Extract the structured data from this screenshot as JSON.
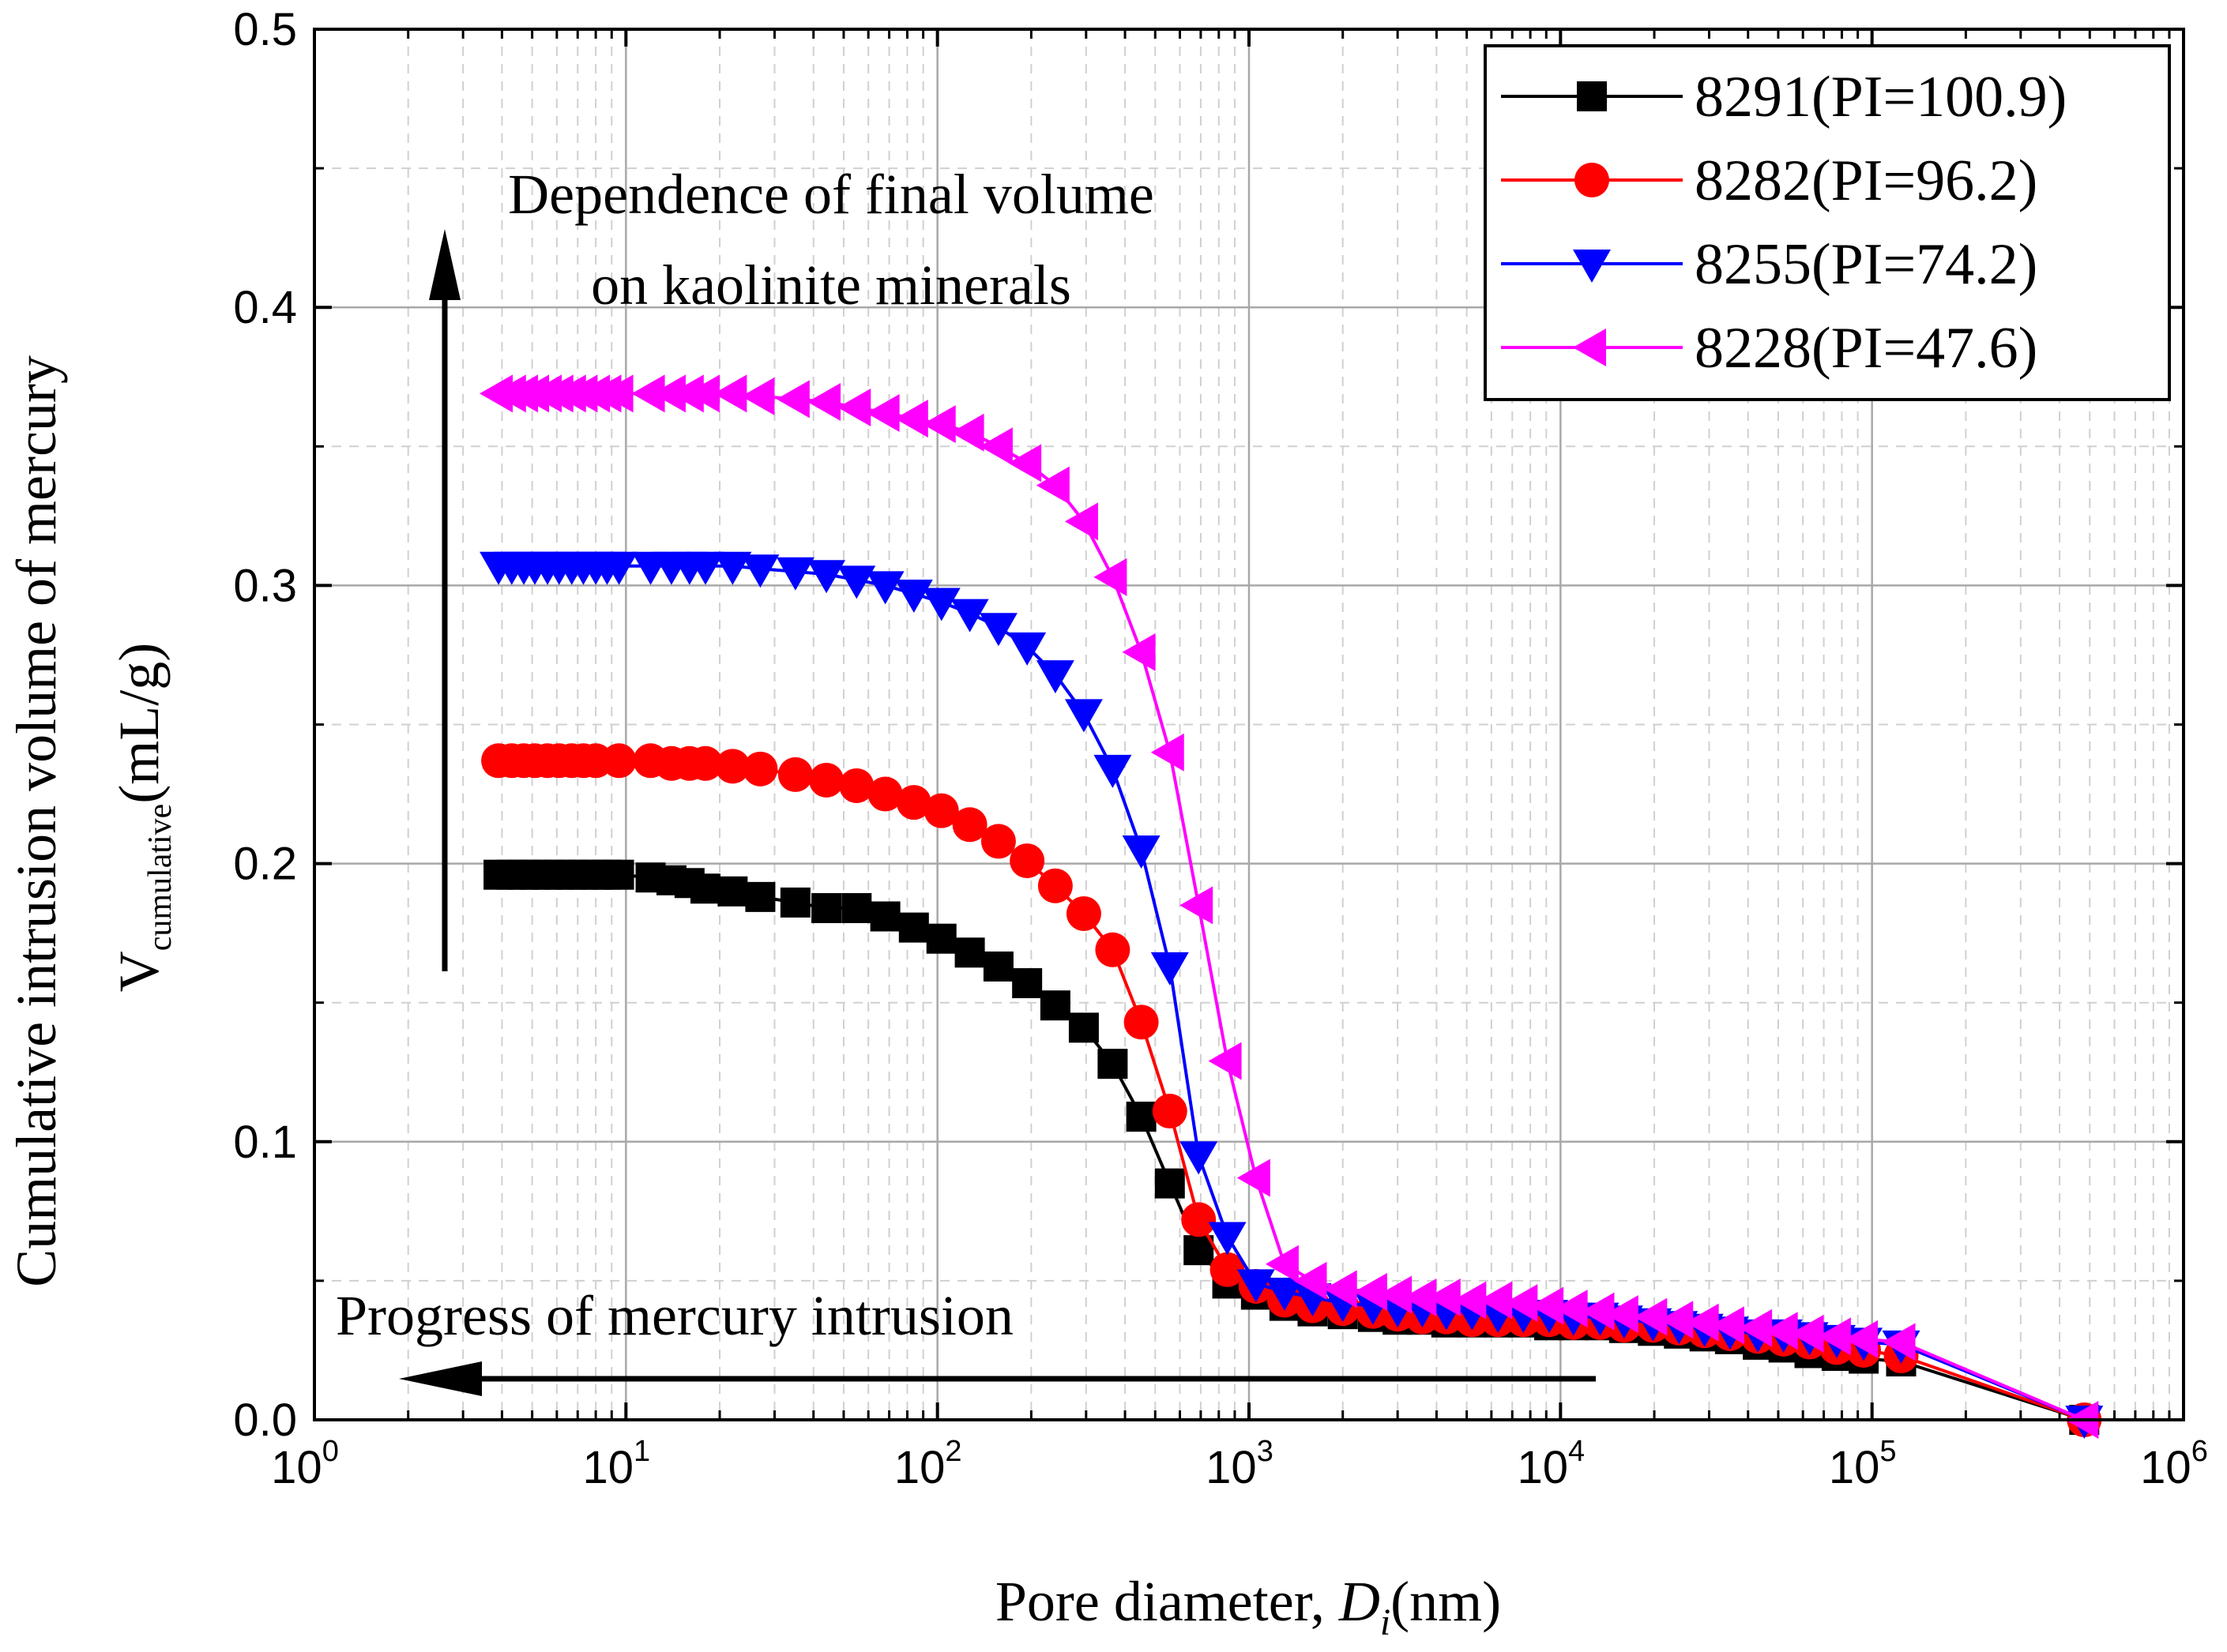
{
  "chart_data": {
    "type": "line",
    "x_scale": "log",
    "xlim": [
      1,
      1000000
    ],
    "ylim": [
      0.0,
      0.5
    ],
    "grid": true,
    "legend_position": "top-right",
    "xlabel": "Pore diameter, ",
    "xlabel_italic": "D",
    "xlabel_subscript": "i",
    "xlabel_unit": "(nm)",
    "ylabel_line1": "Cumulative intrusion volume of mercury",
    "ylabel_line2_main": "V",
    "ylabel_line2_sub": "cumulative",
    "ylabel_line2_unit": "(mL/g)",
    "x_ticks": [
      {
        "base": "10",
        "exp": "0"
      },
      {
        "base": "10",
        "exp": "1"
      },
      {
        "base": "10",
        "exp": "2"
      },
      {
        "base": "10",
        "exp": "3"
      },
      {
        "base": "10",
        "exp": "4"
      },
      {
        "base": "10",
        "exp": "5"
      },
      {
        "base": "10",
        "exp": "6"
      }
    ],
    "y_ticks": [
      "0.0",
      "0.1",
      "0.2",
      "0.3",
      "0.4",
      "0.5"
    ],
    "annotations": {
      "vertical_arrow_line1": "Dependence of  final volume",
      "vertical_arrow_line2": "on kaolinite minerals",
      "horizontal_arrow": "Progress of mercury intrusion"
    },
    "series": [
      {
        "name": "8291(PI=100.9)",
        "color": "#000000",
        "marker": "square",
        "x": [
          3.9,
          4.3,
          4.7,
          5.1,
          5.6,
          6.1,
          6.7,
          7.3,
          8.0,
          8.7,
          9.5,
          12,
          14,
          16,
          18,
          22,
          27,
          35,
          44,
          55,
          68,
          84,
          103,
          127,
          157,
          194,
          239,
          295,
          365,
          451,
          557,
          689,
          852,
          1053,
          1300,
          1600,
          2000,
          2500,
          3000,
          3600,
          4300,
          5200,
          6300,
          7600,
          9200,
          11000,
          13400,
          16000,
          19800,
          24000,
          29000,
          35000,
          43000,
          52000,
          63000,
          77000,
          94000,
          124000,
          480000
        ],
        "y": [
          0.196,
          0.196,
          0.196,
          0.196,
          0.196,
          0.196,
          0.196,
          0.196,
          0.196,
          0.196,
          0.196,
          0.195,
          0.194,
          0.193,
          0.191,
          0.19,
          0.188,
          0.186,
          0.184,
          0.184,
          0.181,
          0.177,
          0.173,
          0.168,
          0.163,
          0.157,
          0.149,
          0.141,
          0.128,
          0.109,
          0.085,
          0.061,
          0.049,
          0.045,
          0.041,
          0.039,
          0.038,
          0.037,
          0.036,
          0.036,
          0.035,
          0.035,
          0.035,
          0.035,
          0.034,
          0.034,
          0.034,
          0.033,
          0.032,
          0.031,
          0.03,
          0.029,
          0.027,
          0.026,
          0.024,
          0.023,
          0.022,
          0.021,
          0.0
        ]
      },
      {
        "name": "8282(PI=96.2)",
        "color": "#ff0000",
        "marker": "circle",
        "x": [
          3.9,
          4.3,
          4.7,
          5.1,
          5.6,
          6.1,
          6.7,
          7.3,
          8.0,
          9.5,
          12,
          14,
          16,
          18,
          22,
          27,
          35,
          44,
          55,
          68,
          84,
          103,
          127,
          157,
          194,
          239,
          295,
          365,
          451,
          557,
          689,
          852,
          1053,
          1300,
          1600,
          2000,
          2500,
          3000,
          3600,
          4300,
          5200,
          6300,
          7600,
          9200,
          11000,
          13400,
          16000,
          19800,
          24000,
          29000,
          35000,
          43000,
          52000,
          63000,
          77000,
          94000,
          124000,
          480000
        ],
        "y": [
          0.237,
          0.237,
          0.237,
          0.237,
          0.237,
          0.237,
          0.237,
          0.237,
          0.237,
          0.237,
          0.237,
          0.236,
          0.236,
          0.236,
          0.235,
          0.234,
          0.232,
          0.23,
          0.228,
          0.225,
          0.222,
          0.219,
          0.214,
          0.208,
          0.201,
          0.192,
          0.182,
          0.169,
          0.143,
          0.111,
          0.072,
          0.054,
          0.048,
          0.043,
          0.041,
          0.04,
          0.039,
          0.038,
          0.037,
          0.037,
          0.036,
          0.036,
          0.036,
          0.036,
          0.035,
          0.035,
          0.034,
          0.034,
          0.033,
          0.032,
          0.031,
          0.03,
          0.029,
          0.028,
          0.026,
          0.025,
          0.023,
          0.0
        ]
      },
      {
        "name": "8255(PI=74.2)",
        "color": "#0000ff",
        "marker": "triangle-down",
        "x": [
          3.9,
          4.3,
          4.7,
          5.1,
          5.6,
          6.1,
          6.7,
          7.3,
          8.0,
          8.7,
          9.5,
          12,
          14,
          16,
          18,
          22,
          27,
          35,
          44,
          55,
          68,
          84,
          103,
          127,
          157,
          194,
          239,
          295,
          365,
          451,
          557,
          689,
          852,
          1053,
          1300,
          1600,
          2000,
          2500,
          3000,
          3600,
          4300,
          5200,
          6300,
          7600,
          9200,
          11000,
          13400,
          16000,
          19800,
          24000,
          29000,
          35000,
          43000,
          52000,
          63000,
          77000,
          94000,
          124000,
          480000
        ],
        "y": [
          0.307,
          0.307,
          0.307,
          0.307,
          0.307,
          0.307,
          0.307,
          0.307,
          0.307,
          0.307,
          0.307,
          0.307,
          0.307,
          0.307,
          0.307,
          0.307,
          0.306,
          0.305,
          0.304,
          0.302,
          0.3,
          0.297,
          0.294,
          0.29,
          0.285,
          0.278,
          0.268,
          0.254,
          0.234,
          0.205,
          0.163,
          0.095,
          0.066,
          0.049,
          0.046,
          0.044,
          0.042,
          0.041,
          0.04,
          0.04,
          0.039,
          0.039,
          0.038,
          0.038,
          0.038,
          0.037,
          0.037,
          0.036,
          0.035,
          0.034,
          0.033,
          0.032,
          0.031,
          0.031,
          0.03,
          0.029,
          0.028,
          0.027,
          0.0
        ]
      },
      {
        "name": "8228(PI=47.6)",
        "color": "#ff00ff",
        "marker": "triangle-left",
        "x": [
          3.9,
          4.3,
          4.7,
          5.1,
          5.6,
          6.1,
          6.7,
          7.3,
          8.0,
          8.7,
          9.5,
          12,
          14,
          16,
          18,
          22,
          27,
          35,
          44,
          55,
          68,
          84,
          103,
          127,
          157,
          194,
          239,
          295,
          365,
          451,
          557,
          689,
          852,
          1053,
          1300,
          1600,
          2000,
          2500,
          3000,
          3600,
          4300,
          5200,
          6300,
          7600,
          9200,
          11000,
          13400,
          16000,
          19800,
          24000,
          29000,
          35000,
          43000,
          52000,
          63000,
          77000,
          94000,
          124000,
          480000
        ],
        "y": [
          0.369,
          0.369,
          0.369,
          0.369,
          0.369,
          0.369,
          0.369,
          0.369,
          0.369,
          0.369,
          0.369,
          0.369,
          0.369,
          0.369,
          0.369,
          0.369,
          0.368,
          0.367,
          0.366,
          0.364,
          0.362,
          0.36,
          0.358,
          0.355,
          0.35,
          0.344,
          0.336,
          0.323,
          0.303,
          0.276,
          0.24,
          0.185,
          0.129,
          0.087,
          0.056,
          0.05,
          0.047,
          0.046,
          0.045,
          0.044,
          0.044,
          0.043,
          0.043,
          0.042,
          0.041,
          0.04,
          0.039,
          0.038,
          0.037,
          0.036,
          0.035,
          0.034,
          0.033,
          0.032,
          0.031,
          0.03,
          0.029,
          0.028,
          0.0
        ]
      }
    ]
  }
}
